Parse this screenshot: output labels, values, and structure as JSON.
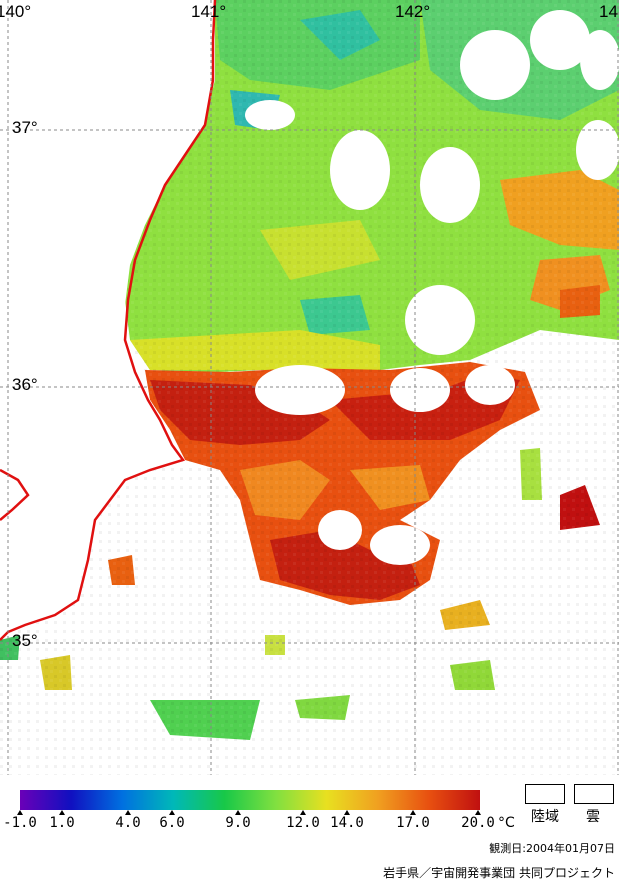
{
  "map": {
    "lon_labels": [
      "140°",
      "141°",
      "142°",
      "14"
    ],
    "lat_labels": [
      "37°",
      "36°",
      "35°"
    ]
  },
  "colorbar": {
    "gradient": [
      "#6a00b8",
      "#1010c0",
      "#0070e0",
      "#00b8b8",
      "#18c848",
      "#80e040",
      "#e8e020",
      "#f0a020",
      "#e85010",
      "#c01010"
    ],
    "ticks": [
      "-1.0",
      "1.0",
      "4.0",
      "6.0",
      "9.0",
      "12.0",
      "14.0",
      "17.0",
      "20.0"
    ],
    "unit": "°C"
  },
  "legend": {
    "land_label": "陸域",
    "cloud_label": "雲"
  },
  "observation_date": "観測日:2004年01月07日",
  "credit": "岩手県／宇宙開発事業団 共同プロジェクト"
}
